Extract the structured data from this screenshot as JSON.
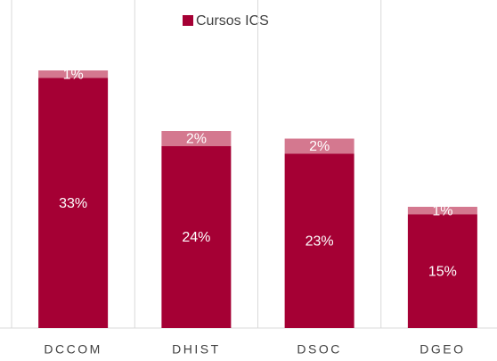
{
  "chart_data": {
    "type": "stacked_bar",
    "categories": [
      "DCCOM",
      "DHIST",
      "DSOC",
      "DGEO"
    ],
    "series": [
      {
        "name": "Cursos ICS",
        "color": "#a50034",
        "values": [
          33,
          24,
          23,
          15
        ],
        "value_labels": [
          "33%",
          "24%",
          "23%",
          "15%"
        ]
      },
      {
        "color": "#d4788f",
        "values": [
          1,
          2,
          2,
          1
        ],
        "value_labels": [
          "1%",
          "2%",
          "2%",
          "1%"
        ]
      }
    ]
  }
}
